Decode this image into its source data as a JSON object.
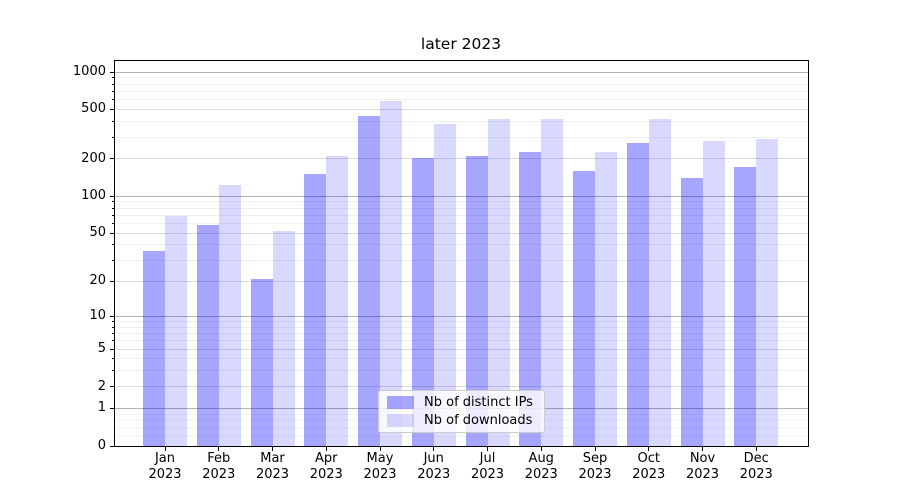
{
  "title": "later 2023",
  "axes": {
    "ytick_labels": [
      "1000",
      "500",
      "200",
      "100",
      "50",
      "20",
      "10",
      "5",
      "2",
      "1",
      "0"
    ]
  },
  "legend": {
    "items": [
      "Nb of distinct IPs",
      "Nb of downloads"
    ]
  },
  "chart_data": {
    "type": "bar",
    "title": "later 2023",
    "yscale": "symlog-like (position proportional to log10(1+y))",
    "ylim": [
      0,
      1240
    ],
    "grid": true,
    "legend_position": "lower center",
    "categories": [
      "Jan 2023",
      "Feb 2023",
      "Mar 2023",
      "Apr 2023",
      "May 2023",
      "Jun 2023",
      "Jul 2023",
      "Aug 2023",
      "Sep 2023",
      "Oct 2023",
      "Nov 2023",
      "Dec 2023"
    ],
    "yticks": [
      0,
      1,
      2,
      5,
      10,
      20,
      50,
      100,
      200,
      500,
      1000
    ],
    "series": [
      {
        "name": "Nb of distinct IPs",
        "color": "rgba(0,0,255,0.35)",
        "values": [
          36,
          58,
          21,
          151,
          440,
          203,
          210,
          226,
          160,
          268,
          140,
          172
        ]
      },
      {
        "name": "Nb of downloads",
        "color": "rgba(0,0,255,0.15)",
        "values": [
          69,
          124,
          52,
          211,
          589,
          385,
          416,
          416,
          227,
          416,
          280,
          287
        ]
      }
    ]
  }
}
